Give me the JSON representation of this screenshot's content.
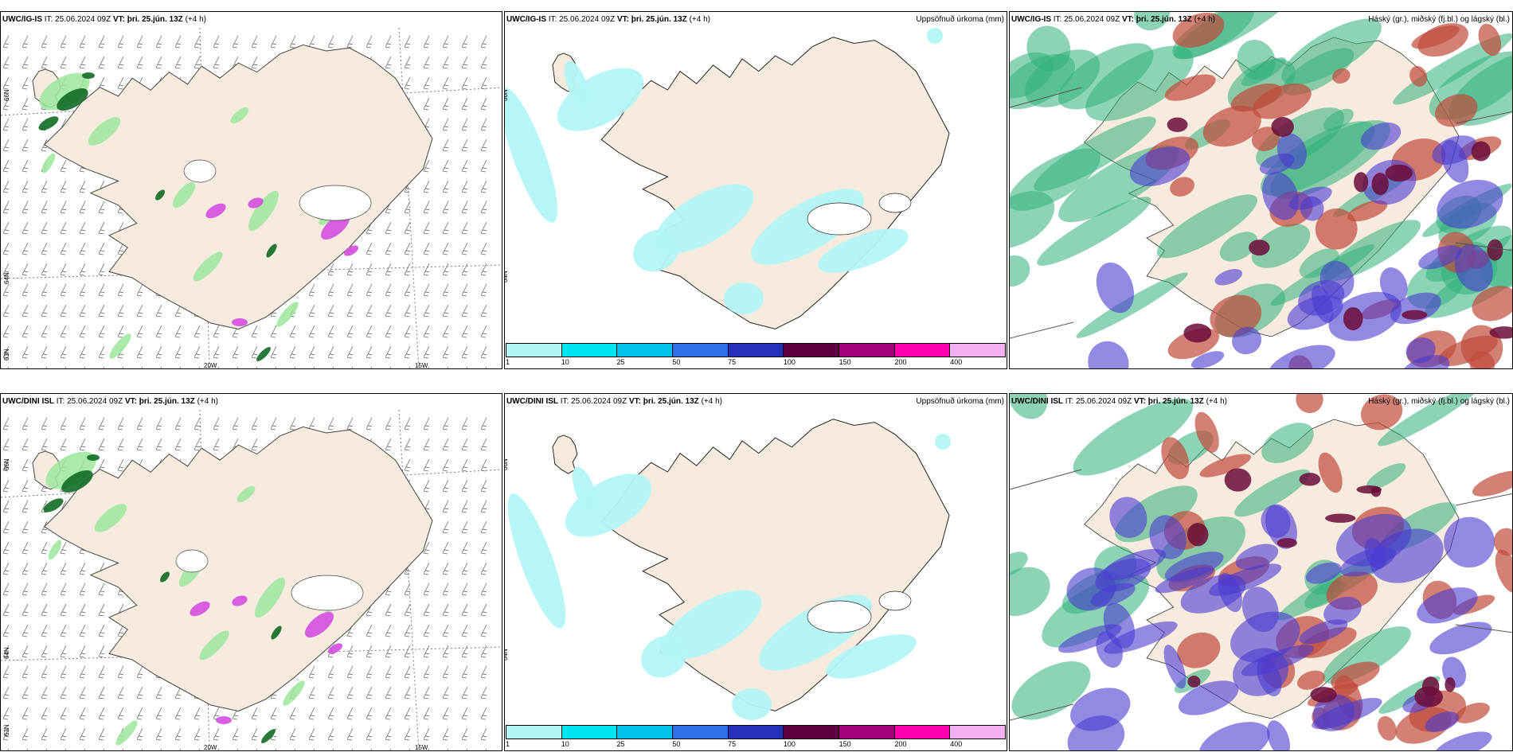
{
  "panels": {
    "p1": {
      "model": "UWC/IG-IS",
      "it_label": "IT:",
      "it": "25.06.2024 09Z",
      "vt_label": "VT:",
      "vt": "þri. 25.jún. 13Z",
      "lead": "(+4 h)",
      "right_title": ""
    },
    "p2": {
      "model": "UWC/IG-IS",
      "it_label": "IT:",
      "it": "25.06.2024 09Z",
      "vt_label": "VT:",
      "vt": "þri. 25.jún. 13Z",
      "lead": "(+4 h)",
      "right_title": "Uppsöfnuð úrkoma (mm)"
    },
    "p3": {
      "model": "UWC/IG-IS",
      "it_label": "IT:",
      "it": "25.06.2024 09Z",
      "vt_label": "VT:",
      "vt": "þri. 25.jún. 13Z",
      "lead": "(+4 h)",
      "right_title": "Háský (gr.), miðský (fj.bl.) og lágský (bl.)"
    },
    "p4": {
      "model": "UWC/DINI ISL",
      "it_label": "IT:",
      "it": "25.06.2024 09Z",
      "vt_label": "VT:",
      "vt": "þri. 25.jún. 13Z",
      "lead": "(+4 h)",
      "right_title": ""
    },
    "p5": {
      "model": "UWC/DINI ISL",
      "it_label": "IT:",
      "it": "25.06.2024 09Z",
      "vt_label": "VT:",
      "vt": "þri. 25.jún. 13Z",
      "lead": "(+4 h)",
      "right_title": "Uppsöfnuð úrkoma (mm)"
    },
    "p6": {
      "model": "UWC/DINI ISL",
      "it_label": "IT:",
      "it": "25.06.2024 09Z",
      "vt_label": "VT:",
      "vt": "þri. 25.jún. 13Z",
      "lead": "(+4 h)",
      "right_title": "Háský (gr.), miðský (fj.bl.) og lágský (bl.)"
    }
  },
  "grid_labels": {
    "lat_66": "66N",
    "lat_64": "64N",
    "lat_63": "63N",
    "lon_20": "20W",
    "lon_15": "15W"
  },
  "colorbar": {
    "ticks": [
      "1",
      "10",
      "25",
      "50",
      "75",
      "100",
      "150",
      "200",
      "400"
    ],
    "colors": [
      "#b3f5f5",
      "#00e6f0",
      "#00c4ea",
      "#2e6ee6",
      "#2431b8",
      "#5c0040",
      "#a3007a",
      "#ff00b0",
      "#f5b0f0"
    ]
  },
  "colors": {
    "land": "#f7ebe0",
    "rain_green": "#9be89b",
    "rain_dark": "#0f6b25",
    "rain_magenta": "#d44ee0",
    "precip_cyan": "#b3f5f5",
    "cloud_high": "#2fb07a",
    "cloud_mid": "#c04a3a",
    "cloud_low": "#4a3bd0"
  }
}
